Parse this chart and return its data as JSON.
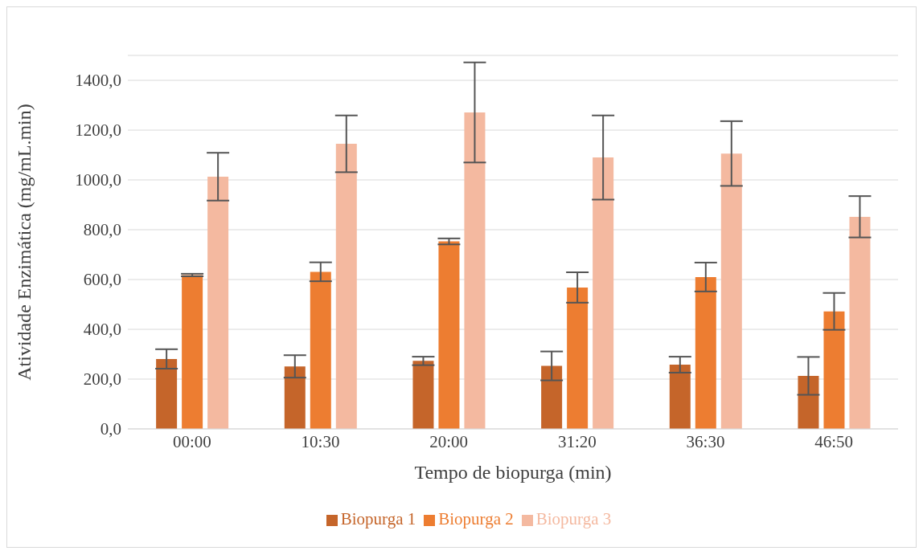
{
  "chart_data": {
    "type": "bar",
    "xlabel": "Tempo de biopurga (min)",
    "ylabel": "Atividade Enzimática (mg/mL.min)",
    "categories": [
      "00:00",
      "10:30",
      "20:00",
      "31:20",
      "36:30",
      "46:50"
    ],
    "series": [
      {
        "name": "Biopurga 1",
        "color": "#c5652a",
        "values": [
          281,
          251,
          273,
          253,
          258,
          213
        ],
        "errors": [
          39,
          45,
          17,
          58,
          32,
          76
        ]
      },
      {
        "name": "Biopurga 2",
        "color": "#ed7d31",
        "values": [
          618,
          631,
          753,
          568,
          610,
          472
        ],
        "errors": [
          5,
          38,
          12,
          61,
          58,
          74
        ]
      },
      {
        "name": "Biopurga 3",
        "color": "#f4b9a0",
        "values": [
          1013,
          1145,
          1271,
          1090,
          1106,
          852
        ],
        "errors": [
          96,
          114,
          201,
          169,
          130,
          83
        ]
      }
    ],
    "ylim": [
      0,
      1500
    ],
    "yticks": [
      {
        "value": 0,
        "label": "0,0"
      },
      {
        "value": 200,
        "label": "200,0"
      },
      {
        "value": 400,
        "label": "400,0"
      },
      {
        "value": 600,
        "label": "600,0"
      },
      {
        "value": 800,
        "label": "800,0"
      },
      {
        "value": 1000,
        "label": "1000,0"
      },
      {
        "value": 1200,
        "label": "1200,0"
      },
      {
        "value": 1400,
        "label": "1400,0"
      }
    ],
    "grid": "y",
    "legend": "bottom"
  }
}
